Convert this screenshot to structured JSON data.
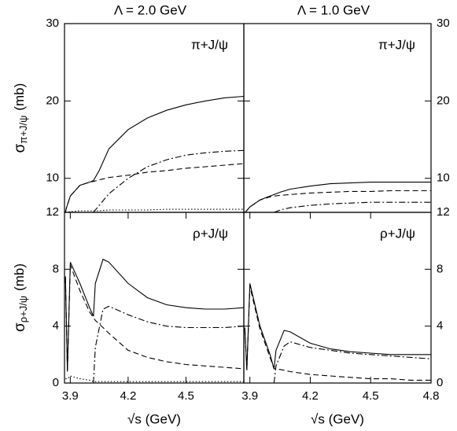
{
  "chart_data": [
    {
      "type": "line",
      "title": "Λ = 2.0 GeV",
      "annotation": "π+J/ψ",
      "ylabel": {
        "symbol": "σ",
        "sub": "π+J/ψ",
        "unit": "(mb)"
      },
      "ytick_side": "left",
      "x": [
        3.875,
        3.88,
        3.9,
        3.95,
        4.0,
        4.02,
        4.05,
        4.1,
        4.2,
        4.3,
        4.4,
        4.5,
        4.6,
        4.7,
        4.8
      ],
      "xlim": [
        3.87,
        4.8
      ],
      "ylim": [
        5.6,
        30
      ],
      "yticks": [
        10,
        20,
        30
      ],
      "series": [
        {
          "color": "#000000",
          "dash": "solid",
          "values": [
            5.6,
            6.2,
            7.7,
            9.1,
            9.5,
            9.7,
            11.0,
            13.8,
            16.3,
            17.8,
            18.8,
            19.5,
            20.0,
            20.4,
            20.6
          ]
        },
        {
          "color": "#000000",
          "dash": "dashed",
          "values": [
            5.6,
            6.2,
            7.7,
            9.1,
            9.5,
            9.6,
            9.8,
            10.1,
            10.4,
            10.8,
            11.0,
            11.3,
            11.5,
            11.7,
            11.9
          ]
        },
        {
          "color": "#000000",
          "dash": "dashdot",
          "values": [
            null,
            null,
            null,
            null,
            null,
            5.6,
            6.5,
            8.0,
            10.0,
            11.5,
            12.4,
            13.0,
            13.3,
            13.5,
            13.6
          ]
        },
        {
          "color": "#000000",
          "dash": "dotted",
          "values": [
            5.6,
            5.6,
            5.7,
            5.8,
            5.8,
            5.8,
            5.8,
            5.9,
            5.9,
            5.9,
            6.0,
            6.0,
            6.0,
            6.0,
            6.0
          ]
        }
      ]
    },
    {
      "type": "line",
      "title": "Λ = 1.0 GeV",
      "annotation": "π+J/ψ",
      "ytick_side": "right",
      "x": [
        3.875,
        3.88,
        3.9,
        3.95,
        4.0,
        4.02,
        4.05,
        4.1,
        4.2,
        4.3,
        4.4,
        4.5,
        4.6,
        4.7,
        4.8
      ],
      "xlim": [
        3.87,
        4.8
      ],
      "ylim": [
        5.6,
        30
      ],
      "yticks": [
        10,
        20,
        30
      ],
      "series": [
        {
          "color": "#000000",
          "dash": "solid",
          "values": [
            5.6,
            5.7,
            6.3,
            7.2,
            7.7,
            7.9,
            8.2,
            8.6,
            9.0,
            9.3,
            9.4,
            9.5,
            9.5,
            9.5,
            9.5
          ]
        },
        {
          "color": "#000000",
          "dash": "dashed",
          "values": [
            5.6,
            5.7,
            6.3,
            7.2,
            7.6,
            7.7,
            7.8,
            7.9,
            8.1,
            8.2,
            8.3,
            8.3,
            8.4,
            8.4,
            8.4
          ]
        },
        {
          "color": "#000000",
          "dash": "dashdot",
          "values": [
            null,
            null,
            null,
            null,
            null,
            5.6,
            5.9,
            6.2,
            6.5,
            6.7,
            6.8,
            6.9,
            6.9,
            6.9,
            6.9
          ]
        }
      ]
    },
    {
      "type": "line",
      "annotation": "ρ+J/ψ",
      "xlabel": "√s (GeV)",
      "ylabel": {
        "symbol": "σ",
        "sub": "ρ+J/ψ",
        "unit": "(mb)"
      },
      "ytick_side": "left",
      "x": [
        3.875,
        3.885,
        3.9,
        3.95,
        4.0,
        4.02,
        4.03,
        4.07,
        4.1,
        4.2,
        4.3,
        4.4,
        4.5,
        4.6,
        4.7,
        4.8
      ],
      "xlim": [
        3.87,
        4.8
      ],
      "xticks": [
        3.9,
        4.2,
        4.5
      ],
      "ylim": [
        0,
        12
      ],
      "yticks": [
        0,
        4,
        8,
        12
      ],
      "series": [
        {
          "color": "#000000",
          "dash": "solid",
          "values": [
            7.5,
            0.8,
            8.5,
            7.0,
            5.3,
            4.7,
            7.0,
            8.7,
            8.5,
            7.0,
            6.0,
            5.5,
            5.3,
            5.2,
            5.2,
            5.3
          ]
        },
        {
          "color": "#000000",
          "dash": "dashed",
          "values": [
            7.4,
            0.8,
            8.3,
            6.5,
            5.0,
            4.6,
            4.4,
            3.9,
            3.5,
            2.3,
            1.8,
            1.5,
            1.3,
            1.2,
            1.1,
            1.0
          ]
        },
        {
          "color": "#000000",
          "dash": "dashdot",
          "values": [
            null,
            null,
            null,
            null,
            null,
            0,
            2.5,
            5.2,
            5.4,
            4.8,
            4.3,
            4.0,
            3.9,
            3.9,
            3.9,
            4.0
          ]
        },
        {
          "color": "#000000",
          "dash": "dotted",
          "values": [
            0.3,
            0.3,
            0.5,
            0.3,
            0.2,
            0.1,
            0.1,
            0.1,
            0.1,
            0.1,
            0.1,
            0.1,
            0.1,
            0.1,
            0.1,
            0.1
          ]
        }
      ]
    },
    {
      "type": "line",
      "annotation": "ρ+J/ψ",
      "xlabel": "√s (GeV)",
      "ytick_side": "right",
      "x": [
        3.875,
        3.885,
        3.9,
        3.95,
        4.0,
        4.02,
        4.03,
        4.07,
        4.1,
        4.2,
        4.3,
        4.4,
        4.5,
        4.6,
        4.7,
        4.8
      ],
      "xlim": [
        3.87,
        4.8
      ],
      "xticks": [
        3.9,
        4.2,
        4.5,
        4.8
      ],
      "ylim": [
        0,
        12
      ],
      "yticks": [
        0,
        4,
        8,
        12
      ],
      "series": [
        {
          "color": "#000000",
          "dash": "solid",
          "values": [
            3.9,
            0.9,
            7.0,
            4.0,
            2.0,
            1.0,
            2.3,
            3.7,
            3.6,
            2.8,
            2.4,
            2.2,
            2.1,
            2.0,
            2.0,
            2.0
          ]
        },
        {
          "color": "#000000",
          "dash": "dashed",
          "values": [
            3.8,
            0.9,
            6.8,
            3.8,
            1.8,
            1.0,
            1.0,
            0.9,
            0.8,
            0.6,
            0.5,
            0.4,
            0.3,
            0.3,
            0.2,
            0.2
          ]
        },
        {
          "color": "#000000",
          "dash": "dashdot",
          "values": [
            null,
            null,
            null,
            null,
            null,
            0,
            1.2,
            2.6,
            2.9,
            2.5,
            2.3,
            2.1,
            2.0,
            1.9,
            1.8,
            1.7
          ]
        }
      ]
    }
  ]
}
